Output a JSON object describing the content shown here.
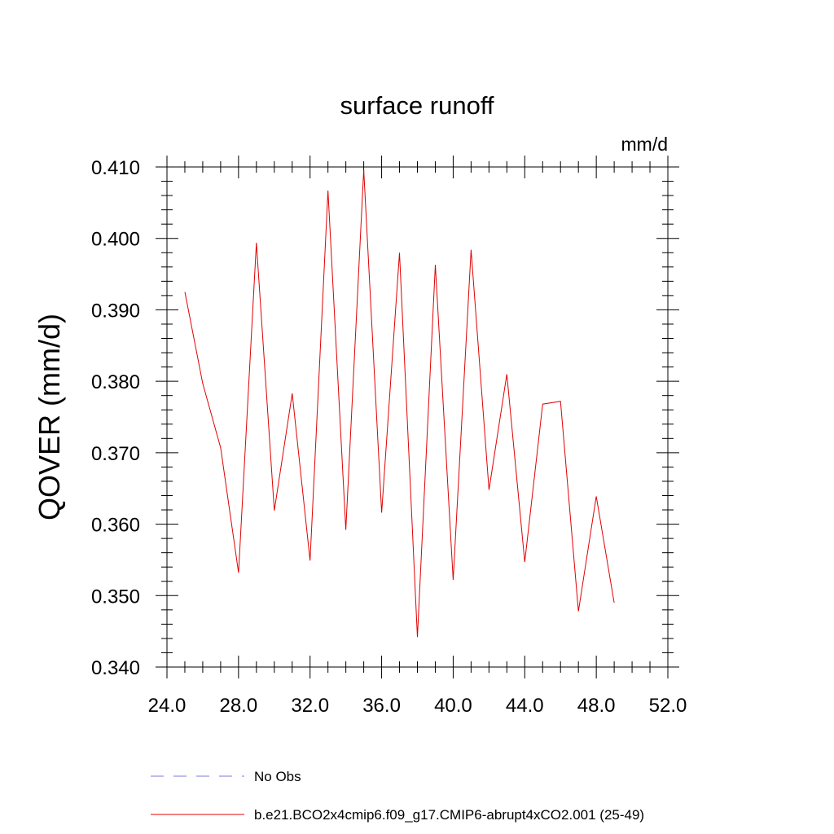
{
  "chart_data": {
    "type": "line",
    "title": "surface runoff",
    "units": "mm/d",
    "ylabel": "QOVER  (mm/d)",
    "xlabel": "",
    "xlim": [
      24.0,
      52.0
    ],
    "ylim": [
      0.34,
      0.41
    ],
    "x_ticks": [
      "24.0",
      "28.0",
      "32.0",
      "36.0",
      "40.0",
      "44.0",
      "48.0",
      "52.0"
    ],
    "y_ticks": [
      "0.340",
      "0.350",
      "0.360",
      "0.370",
      "0.380",
      "0.390",
      "0.400",
      "0.410"
    ],
    "grid": false,
    "legend_position": "bottom",
    "legend": [
      {
        "label": "No Obs",
        "color": "#7a7ad8",
        "style": "dashed"
      },
      {
        "label": "b.e21.BCO2x4cmip6.f09_g17.CMIP6-abrupt4xCO2.001 (25-49)",
        "color": "#e00000",
        "style": "solid"
      }
    ],
    "series": [
      {
        "name": "b.e21.BCO2x4cmip6.f09_g17.CMIP6-abrupt4xCO2.001 (25-49)",
        "color": "#e00000",
        "x": [
          25,
          26,
          27,
          28,
          29,
          30,
          31,
          32,
          33,
          34,
          35,
          36,
          37,
          38,
          39,
          40,
          41,
          42,
          43,
          44,
          45,
          46,
          47,
          48,
          49
        ],
        "y": [
          0.3925,
          0.3797,
          0.3707,
          0.3532,
          0.3994,
          0.3619,
          0.3783,
          0.3549,
          0.4067,
          0.3592,
          0.4096,
          0.3616,
          0.398,
          0.3442,
          0.3963,
          0.3522,
          0.3984,
          0.3648,
          0.381,
          0.3547,
          0.3768,
          0.3772,
          0.3478,
          0.3639,
          0.349
        ]
      }
    ]
  }
}
